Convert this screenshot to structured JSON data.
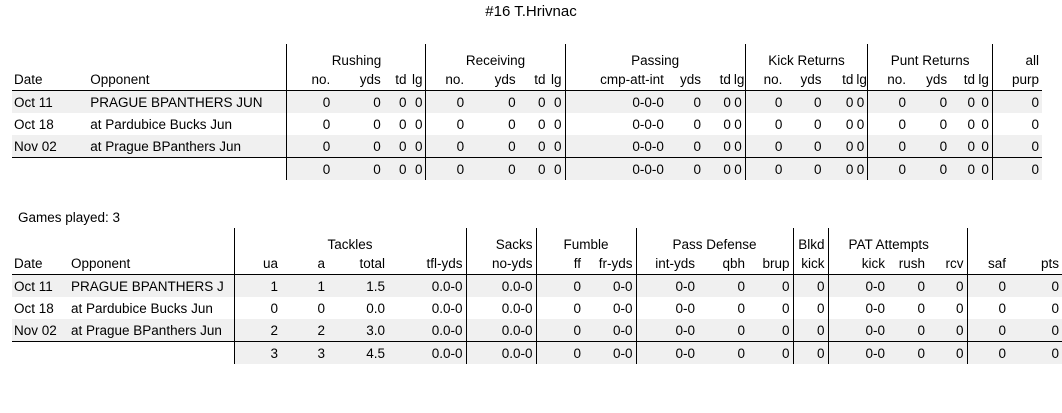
{
  "title": "#16 T.Hrivnac",
  "games_played": "Games played: 3",
  "offense": {
    "groups": [
      "Rushing",
      "Receiving",
      "Passing",
      "Kick Returns",
      "Punt Returns",
      "all"
    ],
    "columns": [
      "Date",
      "Opponent",
      "no.",
      "yds",
      "td",
      "lg",
      "no.",
      "yds",
      "td",
      "lg",
      "cmp-att-int",
      "yds",
      "td",
      "lg",
      "no.",
      "yds",
      "td",
      "lg",
      "no.",
      "yds",
      "td",
      "lg",
      "purp"
    ],
    "rows": [
      [
        "Oct 11",
        "PRAGUE BPANTHERS JUN",
        "0",
        "0",
        "0",
        "0",
        "0",
        "0",
        "0",
        "0",
        "0-0-0",
        "0",
        "0",
        "0",
        "0",
        "0",
        "0",
        "0",
        "0",
        "0",
        "0",
        "0",
        "0"
      ],
      [
        "Oct 18",
        "at Pardubice Bucks Jun",
        "0",
        "0",
        "0",
        "0",
        "0",
        "0",
        "0",
        "0",
        "0-0-0",
        "0",
        "0",
        "0",
        "0",
        "0",
        "0",
        "0",
        "0",
        "0",
        "0",
        "0",
        "0"
      ],
      [
        "Nov 02",
        "at Prague BPanthers Jun",
        "0",
        "0",
        "0",
        "0",
        "0",
        "0",
        "0",
        "0",
        "0-0-0",
        "0",
        "0",
        "0",
        "0",
        "0",
        "0",
        "0",
        "0",
        "0",
        "0",
        "0",
        "0"
      ]
    ],
    "totals": [
      "",
      "",
      "0",
      "0",
      "0",
      "0",
      "0",
      "0",
      "0",
      "0",
      "0-0-0",
      "0",
      "0",
      "0",
      "0",
      "0",
      "0",
      "0",
      "0",
      "0",
      "0",
      "0",
      "0"
    ]
  },
  "defense": {
    "groups": [
      "Tackles",
      "Sacks",
      "Fumble",
      "Pass Defense",
      "Blkd",
      "PAT Attempts"
    ],
    "columns": [
      "Date",
      "Opponent",
      "ua",
      "a",
      "total",
      "tfl-yds",
      "no-yds",
      "ff",
      "fr-yds",
      "int-yds",
      "qbh",
      "brup",
      "kick",
      "kick",
      "rush",
      "rcv",
      "saf",
      "pts"
    ],
    "rows": [
      [
        "Oct 11",
        "PRAGUE BPANTHERS J",
        "1",
        "1",
        "1.5",
        "0.0-0",
        "0.0-0",
        "0",
        "0-0",
        "0-0",
        "0",
        "0",
        "0",
        "0-0",
        "0",
        "0",
        "0",
        "0"
      ],
      [
        "Oct 18",
        "at Pardubice Bucks Jun",
        "0",
        "0",
        "0.0",
        "0.0-0",
        "0.0-0",
        "0",
        "0-0",
        "0-0",
        "0",
        "0",
        "0",
        "0-0",
        "0",
        "0",
        "0",
        "0"
      ],
      [
        "Nov 02",
        "at Prague BPanthers Jun",
        "2",
        "2",
        "3.0",
        "0.0-0",
        "0.0-0",
        "0",
        "0-0",
        "0-0",
        "0",
        "0",
        "0",
        "0-0",
        "0",
        "0",
        "0",
        "0"
      ]
    ],
    "totals": [
      "",
      "",
      "3",
      "3",
      "4.5",
      "0.0-0",
      "0.0-0",
      "0",
      "0-0",
      "0-0",
      "0",
      "0",
      "0",
      "0-0",
      "0",
      "0",
      "0",
      "0"
    ]
  }
}
